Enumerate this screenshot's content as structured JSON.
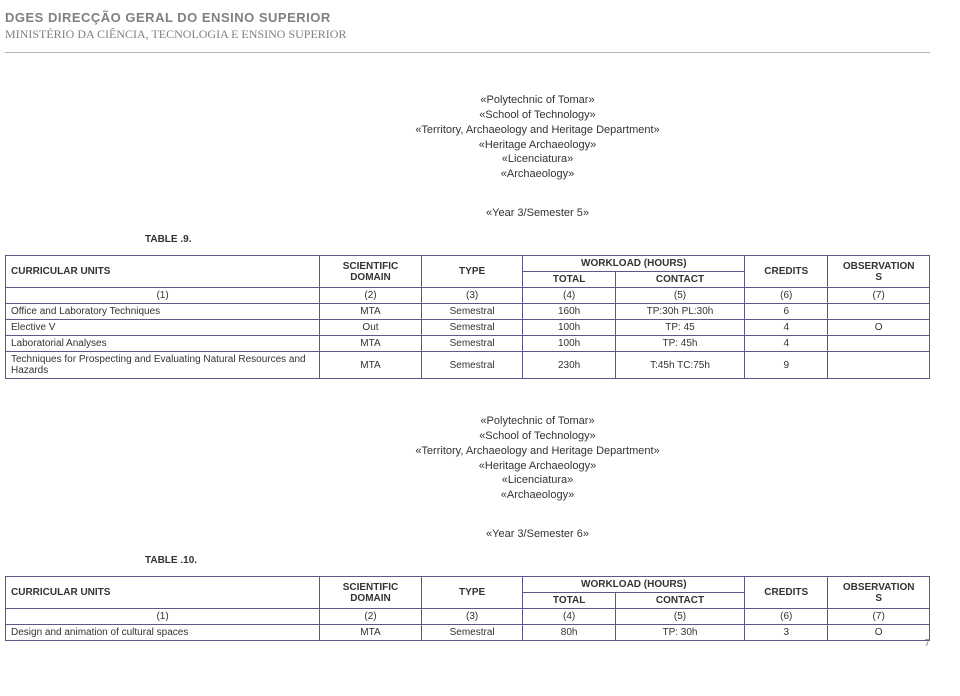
{
  "header": {
    "org": "DGES DIRECÇÃO GERAL DO ENSINO SUPERIOR",
    "ministry": "MINISTÉRIO DA CIÊNCIA, TECNOLOGIA E ENSINO SUPERIOR"
  },
  "block1": {
    "title": {
      "l1": "«Polytechnic of Tomar»",
      "l2": "«School of Technology»",
      "l3": "«Territory, Archaeology and Heritage Department»",
      "l4": "«Heritage Archaeology»",
      "l5": "«Licenciatura»",
      "l6": "«Archaeology»"
    },
    "semester": "«Year 3/Semester 5»",
    "table_label": "TABLE .9.",
    "headers": {
      "units": "CURRICULAR UNITS",
      "domain_line1": "SCIENTIFIC",
      "domain_line2": "DOMAIN",
      "type": "TYPE",
      "workload": "WORKLOAD (HOURS)",
      "total": "TOTAL",
      "contact": "CONTACT",
      "credits": "CREDITS",
      "obs_line1": "OBSERVATION",
      "obs_line2": "S"
    },
    "numrow": {
      "c1": "(1)",
      "c2": "(2)",
      "c3": "(3)",
      "c4": "(4)",
      "c5": "(5)",
      "c6": "(6)",
      "c7": "(7)"
    },
    "rows": [
      {
        "unit": "Office and Laboratory Techniques",
        "domain": "MTA",
        "type": "Semestral",
        "total": "160h",
        "contact": "TP:30h  PL:30h",
        "credits": "6",
        "obs": ""
      },
      {
        "unit": "Elective V",
        "domain": "Out",
        "type": "Semestral",
        "total": "100h",
        "contact": "TP: 45",
        "credits": "4",
        "obs": "O"
      },
      {
        "unit": "Laboratorial Analyses",
        "domain": "MTA",
        "type": "Semestral",
        "total": "100h",
        "contact": "TP: 45h",
        "credits": "4",
        "obs": ""
      },
      {
        "unit": "Techniques for Prospecting and Evaluating Natural Resources and Hazards",
        "domain": "MTA",
        "type": "Semestral",
        "total": "230h",
        "contact": "T:45h TC:75h",
        "credits": "9",
        "obs": ""
      }
    ]
  },
  "block2": {
    "title": {
      "l1": "«Polytechnic of Tomar»",
      "l2": "«School of Technology»",
      "l3": "«Territory, Archaeology and Heritage Department»",
      "l4": "«Heritage Archaeology»",
      "l5": "«Licenciatura»",
      "l6": "«Archaeology»"
    },
    "semester": "«Year 3/Semester 6»",
    "table_label": "TABLE .10.",
    "headers": {
      "units": "CURRICULAR UNITS",
      "domain_line1": "SCIENTIFIC",
      "domain_line2": "DOMAIN",
      "type": "TYPE",
      "workload": "WORKLOAD (HOURS)",
      "total": "TOTAL",
      "contact": "CONTACT",
      "credits": "CREDITS",
      "obs_line1": "OBSERVATION",
      "obs_line2": "S"
    },
    "numrow": {
      "c1": "(1)",
      "c2": "(2)",
      "c3": "(3)",
      "c4": "(4)",
      "c5": "(5)",
      "c6": "(6)",
      "c7": "(7)"
    },
    "rows": [
      {
        "unit": "Design and animation of cultural spaces",
        "domain": "MTA",
        "type": "Semestral",
        "total": "80h",
        "contact": "TP: 30h",
        "credits": "3",
        "obs": "O"
      }
    ]
  },
  "page_number": "7"
}
